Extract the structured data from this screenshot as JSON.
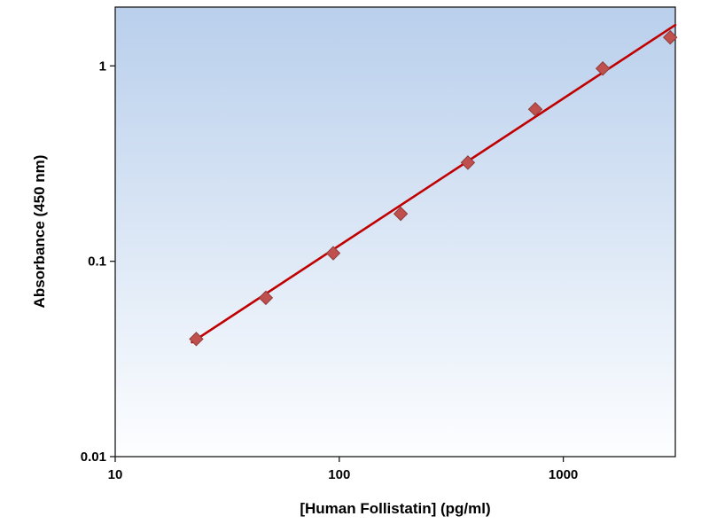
{
  "chart_data": {
    "type": "scatter",
    "title": "",
    "xlabel": "[Human Follistatin] (pg/ml)",
    "ylabel": "Absorbance (450 nm)",
    "x_scale": "log",
    "y_scale": "log",
    "xlim": [
      10,
      3162
    ],
    "ylim": [
      0.01,
      2
    ],
    "x_ticks": [
      10,
      100,
      1000
    ],
    "y_ticks": [
      0.01,
      0.1,
      1
    ],
    "grid": false,
    "legend": false,
    "series": [
      {
        "name": "standard-curve-points",
        "marker": "diamond",
        "x": [
          23,
          47,
          94,
          188,
          375,
          750,
          1500,
          3000
        ],
        "y": [
          0.04,
          0.065,
          0.11,
          0.175,
          0.32,
          0.6,
          0.97,
          1.4
        ]
      }
    ],
    "trendline": {
      "x": [
        22,
        3160
      ],
      "y": [
        0.0385,
        1.62
      ]
    },
    "colors": {
      "marker_fill": "#c0504d",
      "marker_stroke": "#8e3c39",
      "line": "#c00000",
      "plot_bg_top": "#b9cfec",
      "plot_bg_bottom": "#fdfeff",
      "axis": "#1a1a1a",
      "tick_text": "#000000"
    }
  }
}
